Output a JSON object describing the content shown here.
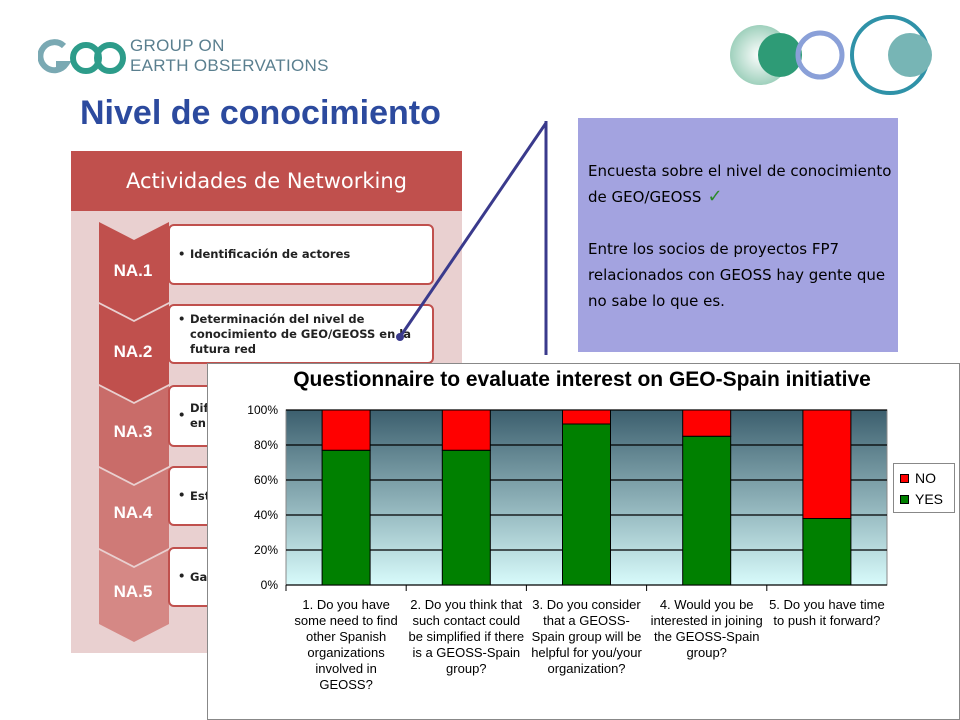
{
  "header": {
    "logo_line1": "GROUP ON",
    "logo_line2": "EARTH OBSERVATIONS",
    "logo_mark": "GEO",
    "title": "Nivel de conocimiento"
  },
  "networking": {
    "header": "Actividades de Networking",
    "items": [
      {
        "code": "NA.1",
        "text": "Identificación de actores"
      },
      {
        "code": "NA.2",
        "text": "Determinación del nivel de conocimiento de GEO/GEOSS en la futura red"
      },
      {
        "code": "NA.3",
        "text": "Dif en"
      },
      {
        "code": "NA.4",
        "text": "Est"
      },
      {
        "code": "NA.5",
        "text": "Ga"
      }
    ]
  },
  "info": {
    "p1": "Encuesta sobre el nivel de conocimiento de GEO/GEOSS",
    "check_icon": "checkmark-icon",
    "p2": "Entre los socios de proyectos FP7 relacionados con GEOSS hay gente que no sabe lo que es."
  },
  "colors": {
    "accent_red": "#c0504d",
    "title_blue": "#2c4a9e",
    "info_bg": "#a3a3e0",
    "yes": "#008000",
    "no": "#ff0000"
  },
  "chart_data": {
    "type": "bar",
    "stacked": true,
    "percent": true,
    "title": "Questionnaire to evaluate interest on GEO-Spain initiative",
    "categories": [
      "1. Do you have some need to find other Spanish organizations involved in GEOSS?",
      "2. Do you think that such contact could be simplified if there is a GEOSS-Spain group?",
      "3. Do you consider that a GEOSS-Spain group will be helpful for you/your organization?",
      "4. Would you be interested in joining the GEOSS-Spain group?",
      "5. Do you have time to push it forward?"
    ],
    "series": [
      {
        "name": "YES",
        "values": [
          77,
          77,
          92,
          85,
          38
        ],
        "color": "#008000"
      },
      {
        "name": "NO",
        "values": [
          23,
          23,
          8,
          15,
          62
        ],
        "color": "#ff0000"
      }
    ],
    "ylim": [
      0,
      100
    ],
    "yticks": [
      "0%",
      "20%",
      "40%",
      "60%",
      "80%",
      "100%"
    ],
    "grid": true,
    "legend_position": "right"
  }
}
